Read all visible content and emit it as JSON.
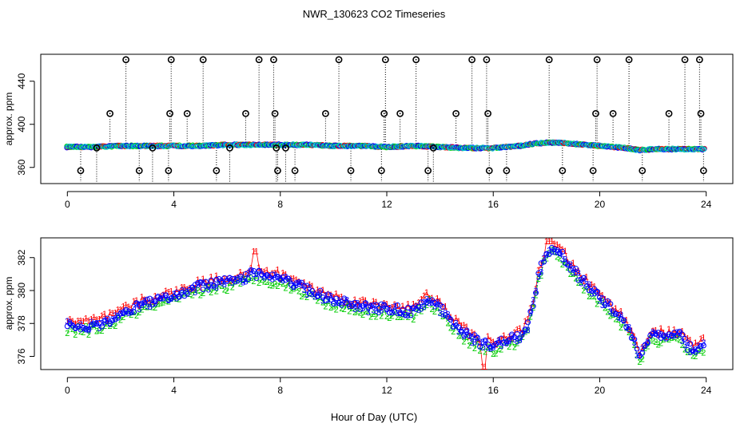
{
  "chart_data": [
    {
      "type": "scatter",
      "panel": "top",
      "title": "NWR_130623  CO2 Timeseries",
      "xlabel": "",
      "ylabel": "approx. ppm",
      "xlim": [
        -1,
        25
      ],
      "ylim": [
        345,
        465
      ],
      "xticks": [
        0,
        4,
        8,
        12,
        16,
        20,
        24
      ],
      "yticks": [
        360,
        400,
        440
      ],
      "baseline_series": [
        {
          "name": "1",
          "color": "#ff0000"
        },
        {
          "name": "2",
          "color": "#00cc00"
        },
        {
          "name": "3",
          "color": "#0000ff"
        },
        {
          "name": "4",
          "color": "#00cccc"
        }
      ],
      "baseline_profile": {
        "x": [
          0,
          1,
          2,
          3,
          4,
          5,
          6,
          7,
          8,
          9,
          10,
          11,
          12,
          13,
          14,
          15,
          16,
          17,
          17.5,
          18,
          18.5,
          19,
          19.5,
          20,
          21,
          21.5,
          22,
          23,
          23.9
        ],
        "y": [
          379,
          379,
          380,
          380,
          380,
          380,
          381,
          381,
          381,
          381,
          380,
          380,
          379,
          380,
          379,
          378,
          378,
          380,
          382,
          383,
          383,
          382,
          381,
          380,
          378,
          376,
          377,
          377,
          377
        ]
      },
      "outliers": {
        "marker": "circle-dot",
        "series_name": "o",
        "x": [
          0.5,
          1.1,
          1.6,
          2.2,
          2.7,
          3.2,
          3.8,
          3.85,
          3.9,
          4.5,
          5.1,
          5.6,
          6.1,
          6.7,
          7.2,
          7.75,
          7.8,
          7.85,
          7.9,
          8.2,
          8.55,
          9.7,
          10.2,
          10.65,
          11.8,
          11.9,
          11.95,
          12.5,
          13.1,
          13.55,
          13.75,
          14.6,
          15.2,
          15.75,
          15.8,
          15.85,
          16.5,
          18.1,
          18.6,
          19.75,
          19.85,
          19.9,
          20.5,
          21.1,
          21.6,
          22.6,
          23.2,
          23.75,
          23.8,
          23.9
        ],
        "y": [
          357,
          378,
          410,
          460,
          357,
          378,
          357,
          410,
          460,
          410,
          460,
          357,
          378,
          410,
          460,
          460,
          410,
          378,
          357,
          378,
          357,
          410,
          460,
          357,
          357,
          410,
          460,
          410,
          460,
          357,
          378,
          410,
          460,
          460,
          410,
          357,
          357,
          460,
          357,
          357,
          410,
          460,
          410,
          460,
          357,
          410,
          460,
          460,
          410,
          357
        ]
      }
    },
    {
      "type": "scatter",
      "panel": "bottom",
      "title": "",
      "xlabel": "Hour of Day (UTC)",
      "ylabel": "approx. ppm",
      "xlim": [
        -1,
        25
      ],
      "ylim": [
        375.2,
        383.2
      ],
      "xticks": [
        0,
        4,
        8,
        12,
        16,
        20,
        24
      ],
      "yticks": [
        376,
        378,
        380,
        382
      ],
      "profile": {
        "x": [
          0,
          0.5,
          1,
          1.5,
          2,
          2.5,
          3,
          3.5,
          4,
          4.5,
          5,
          5.5,
          6,
          6.5,
          7,
          7.5,
          8,
          8.5,
          9,
          9.5,
          10,
          10.5,
          11,
          11.5,
          12,
          12.5,
          13,
          13.3,
          13.6,
          14,
          14.5,
          15,
          15.5,
          16,
          16.5,
          17,
          17.3,
          17.5,
          17.7,
          18,
          18.3,
          18.6,
          19,
          19.5,
          20,
          20.5,
          21,
          21.3,
          21.5,
          21.7,
          22,
          22.5,
          23,
          23.3,
          23.6,
          23.9
        ],
        "y": [
          377.9,
          377.8,
          377.9,
          378.1,
          378.5,
          378.9,
          379.2,
          379.4,
          379.6,
          379.9,
          380.2,
          380.4,
          380.5,
          380.7,
          381.0,
          380.9,
          380.7,
          380.4,
          380.0,
          379.7,
          379.4,
          379.2,
          379.0,
          378.9,
          378.9,
          378.8,
          378.7,
          379.1,
          379.5,
          378.9,
          378.0,
          377.3,
          376.8,
          376.6,
          376.9,
          377.2,
          377.8,
          379.2,
          380.9,
          382.3,
          382.6,
          382.1,
          381.2,
          380.3,
          379.5,
          378.8,
          377.9,
          376.8,
          375.9,
          376.7,
          377.3,
          377.1,
          377.3,
          376.6,
          376.4,
          376.7
        ]
      },
      "series": [
        {
          "name": "1",
          "color": "#ff0000",
          "offset": 0.28,
          "spikes": [
            [
              7.05,
              382.4
            ],
            [
              15.65,
              375.4
            ],
            [
              18.05,
              383.0
            ]
          ]
        },
        {
          "name": "2",
          "color": "#00cc00",
          "offset": -0.25,
          "spikes": []
        },
        {
          "name": "3",
          "color": "#0000ff",
          "offset": 0.0,
          "spikes": []
        },
        {
          "name": "o",
          "color": "#0000ff",
          "offset": 0.05,
          "spikes": []
        }
      ]
    }
  ]
}
